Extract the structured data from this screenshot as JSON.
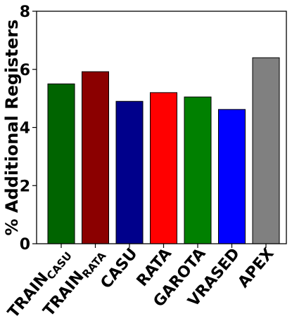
{
  "chart_data": {
    "type": "bar",
    "title": "",
    "xlabel": "",
    "ylabel": "% Additional Registers",
    "ylim": [
      0,
      8
    ],
    "yticks": [
      "0",
      "2",
      "4",
      "6",
      "8"
    ],
    "grid": false,
    "categories": [
      {
        "main": "TRAIN",
        "sub": "CASU"
      },
      {
        "main": "TRAIN",
        "sub": "RATA"
      },
      {
        "main": "CASU",
        "sub": ""
      },
      {
        "main": "RATA",
        "sub": ""
      },
      {
        "main": "GAROTA",
        "sub": ""
      },
      {
        "main": "VRASED",
        "sub": ""
      },
      {
        "main": "APEX",
        "sub": ""
      }
    ],
    "values": [
      5.5,
      5.92,
      4.9,
      5.2,
      5.05,
      4.62,
      6.4
    ],
    "colors": [
      "#006400",
      "#8b0000",
      "#00008b",
      "#ff0000",
      "#008000",
      "#0000ff",
      "#808080"
    ]
  }
}
